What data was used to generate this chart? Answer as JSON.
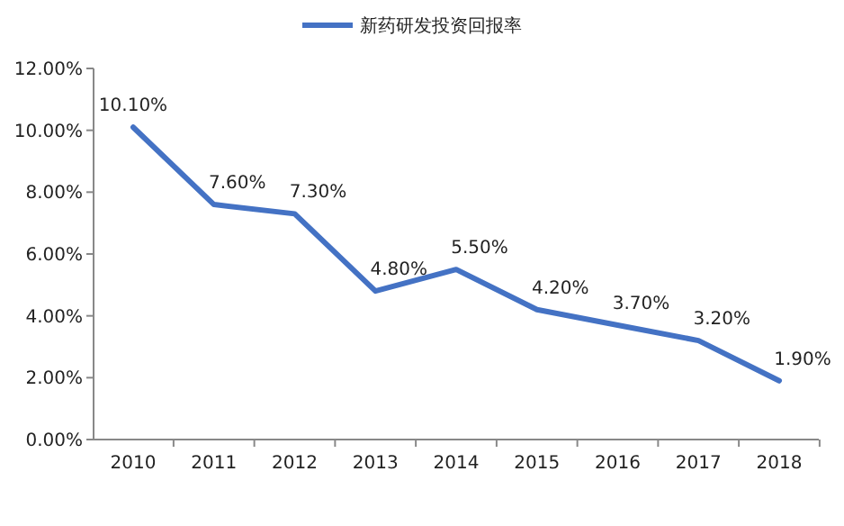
{
  "chart_data": {
    "type": "line",
    "categories": [
      "2010",
      "2011",
      "2012",
      "2013",
      "2014",
      "2015",
      "2016",
      "2017",
      "2018"
    ],
    "series": [
      {
        "name": "新药研发投资回报率",
        "color": "#4472c4",
        "values": [
          10.1,
          7.6,
          7.3,
          4.8,
          5.5,
          4.2,
          3.7,
          3.2,
          1.9
        ],
        "value_labels": [
          "10.10%",
          "7.60%",
          "7.30%",
          "4.80%",
          "5.50%",
          "4.20%",
          "3.70%",
          "3.20%",
          "1.90%"
        ]
      }
    ],
    "ylim": [
      0,
      12
    ],
    "yticks": [
      {
        "value": 0,
        "label": "0.00%"
      },
      {
        "value": 2,
        "label": "2.00%"
      },
      {
        "value": 4,
        "label": "4.00%"
      },
      {
        "value": 6,
        "label": "6.00%"
      },
      {
        "value": 8,
        "label": "8.00%"
      },
      {
        "value": 10,
        "label": "10.00%"
      },
      {
        "value": 12,
        "label": "12.00%"
      }
    ],
    "legend": "top",
    "grid": false,
    "marker": "none",
    "line_style": "solid"
  }
}
